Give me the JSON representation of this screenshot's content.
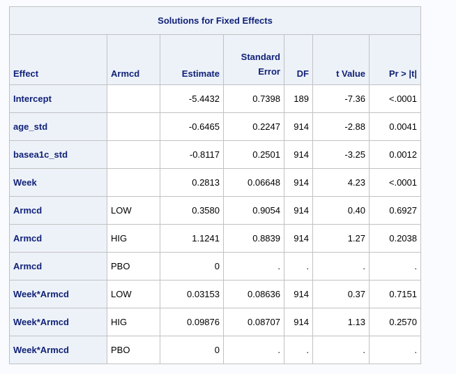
{
  "title": "Solutions for Fixed Effects",
  "headers": {
    "effect": "Effect",
    "armcd": "Armcd",
    "estimate": "Estimate",
    "se_line1": "Standard",
    "se_line2": "Error",
    "df": "DF",
    "tvalue": "t Value",
    "pr": "Pr > |t|"
  },
  "rows": [
    {
      "effect": "Intercept",
      "armcd": "",
      "estimate": "-5.4432",
      "se": "0.7398",
      "df": "189",
      "tvalue": "-7.36",
      "pr": "<.0001"
    },
    {
      "effect": "age_std",
      "armcd": "",
      "estimate": "-0.6465",
      "se": "0.2247",
      "df": "914",
      "tvalue": "-2.88",
      "pr": "0.0041"
    },
    {
      "effect": "basea1c_std",
      "armcd": "",
      "estimate": "-0.8117",
      "se": "0.2501",
      "df": "914",
      "tvalue": "-3.25",
      "pr": "0.0012"
    },
    {
      "effect": "Week",
      "armcd": "",
      "estimate": "0.2813",
      "se": "0.06648",
      "df": "914",
      "tvalue": "4.23",
      "pr": "<.0001"
    },
    {
      "effect": "Armcd",
      "armcd": "LOW",
      "estimate": "0.3580",
      "se": "0.9054",
      "df": "914",
      "tvalue": "0.40",
      "pr": "0.6927"
    },
    {
      "effect": "Armcd",
      "armcd": "HIG",
      "estimate": "1.1241",
      "se": "0.8839",
      "df": "914",
      "tvalue": "1.27",
      "pr": "0.2038"
    },
    {
      "effect": "Armcd",
      "armcd": "PBO",
      "estimate": "0",
      "se": ".",
      "df": ".",
      "tvalue": ".",
      "pr": "."
    },
    {
      "effect": "Week*Armcd",
      "armcd": "LOW",
      "estimate": "0.03153",
      "se": "0.08636",
      "df": "914",
      "tvalue": "0.37",
      "pr": "0.7151"
    },
    {
      "effect": "Week*Armcd",
      "armcd": "HIG",
      "estimate": "0.09876",
      "se": "0.08707",
      "df": "914",
      "tvalue": "1.13",
      "pr": "0.2570"
    },
    {
      "effect": "Week*Armcd",
      "armcd": "PBO",
      "estimate": "0",
      "se": ".",
      "df": ".",
      "tvalue": ".",
      "pr": "."
    }
  ]
}
